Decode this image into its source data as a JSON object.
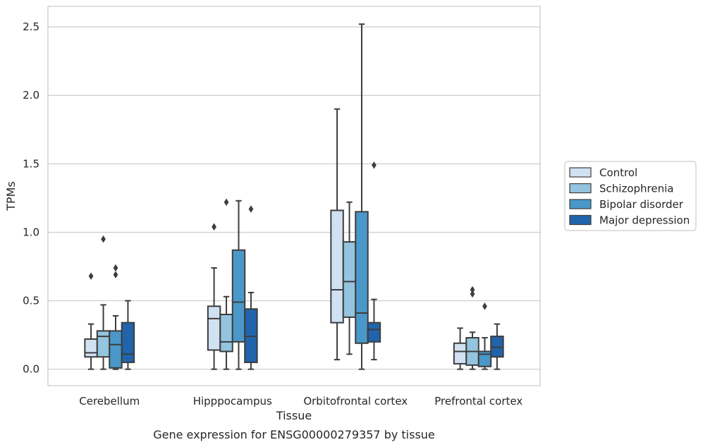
{
  "caption": "Gene expression for ENSG00000279357 by tissue",
  "chart_data": {
    "type": "boxplot",
    "xlabel": "Tissue",
    "ylabel": "TPMs",
    "ylim": [
      -0.12,
      2.65
    ],
    "yticks": [
      0.0,
      0.5,
      1.0,
      1.5,
      2.0,
      2.5
    ],
    "ytick_labels": [
      "0.0",
      "0.5",
      "1.0",
      "1.5",
      "2.0",
      "2.5"
    ],
    "grid": "horizontal",
    "legend_position": "right",
    "categories": [
      "Cerebellum",
      "Hipppocampus",
      "Orbitofrontal cortex",
      "Prefrontal cortex"
    ],
    "series": [
      {
        "name": "Control",
        "color": "#d0e1f2",
        "boxes": [
          {
            "whisker_low": 0.0,
            "q1": 0.09,
            "median": 0.12,
            "q3": 0.22,
            "whisker_high": 0.33,
            "outliers": [
              0.68
            ]
          },
          {
            "whisker_low": 0.0,
            "q1": 0.14,
            "median": 0.37,
            "q3": 0.46,
            "whisker_high": 0.74,
            "outliers": [
              1.04
            ]
          },
          {
            "whisker_low": 0.07,
            "q1": 0.34,
            "median": 0.58,
            "q3": 1.16,
            "whisker_high": 1.9,
            "outliers": []
          },
          {
            "whisker_low": 0.0,
            "q1": 0.04,
            "median": 0.13,
            "q3": 0.19,
            "whisker_high": 0.3,
            "outliers": []
          }
        ]
      },
      {
        "name": "Schizophrenia",
        "color": "#94c4df",
        "boxes": [
          {
            "whisker_low": 0.0,
            "q1": 0.09,
            "median": 0.24,
            "q3": 0.28,
            "whisker_high": 0.47,
            "outliers": [
              0.95
            ]
          },
          {
            "whisker_low": 0.0,
            "q1": 0.13,
            "median": 0.2,
            "q3": 0.4,
            "whisker_high": 0.53,
            "outliers": [
              1.22
            ]
          },
          {
            "whisker_low": 0.11,
            "q1": 0.38,
            "median": 0.64,
            "q3": 0.93,
            "whisker_high": 1.22,
            "outliers": []
          },
          {
            "whisker_low": 0.0,
            "q1": 0.03,
            "median": 0.13,
            "q3": 0.23,
            "whisker_high": 0.27,
            "outliers": [
              0.55,
              0.58
            ]
          }
        ]
      },
      {
        "name": "Bipolar disorder",
        "color": "#4a98c9",
        "boxes": [
          {
            "whisker_low": 0.0,
            "q1": 0.01,
            "median": 0.18,
            "q3": 0.28,
            "whisker_high": 0.39,
            "outliers": [
              0.69,
              0.74
            ]
          },
          {
            "whisker_low": 0.0,
            "q1": 0.2,
            "median": 0.49,
            "q3": 0.87,
            "whisker_high": 1.23,
            "outliers": []
          },
          {
            "whisker_low": 0.0,
            "q1": 0.19,
            "median": 0.41,
            "q3": 1.15,
            "whisker_high": 2.52,
            "outliers": []
          },
          {
            "whisker_low": 0.0,
            "q1": 0.02,
            "median": 0.11,
            "q3": 0.13,
            "whisker_high": 0.23,
            "outliers": [
              0.46
            ]
          }
        ]
      },
      {
        "name": "Major depression",
        "color": "#2164ab",
        "boxes": [
          {
            "whisker_low": 0.0,
            "q1": 0.05,
            "median": 0.11,
            "q3": 0.34,
            "whisker_high": 0.5,
            "outliers": []
          },
          {
            "whisker_low": 0.0,
            "q1": 0.05,
            "median": 0.24,
            "q3": 0.44,
            "whisker_high": 0.56,
            "outliers": [
              1.17
            ]
          },
          {
            "whisker_low": 0.07,
            "q1": 0.2,
            "median": 0.29,
            "q3": 0.34,
            "whisker_high": 0.51,
            "outliers": [
              1.49
            ]
          },
          {
            "whisker_low": 0.0,
            "q1": 0.09,
            "median": 0.16,
            "q3": 0.24,
            "whisker_high": 0.33,
            "outliers": []
          }
        ]
      }
    ]
  }
}
